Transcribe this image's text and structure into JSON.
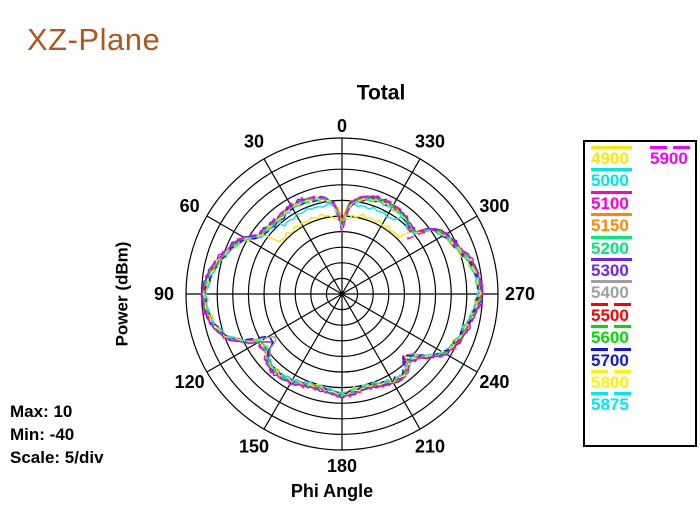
{
  "page": {
    "title": "XZ-Plane"
  },
  "stats": {
    "max": "Max: 10",
    "min": "Min: -40",
    "scale": "Scale: 5/div"
  },
  "chart_data": {
    "type": "polar-line",
    "title": "Total",
    "angular_axis": {
      "label": "Phi Angle",
      "tick_labels": [
        "0",
        "30",
        "60",
        "90",
        "120",
        "150",
        "180",
        "210",
        "240",
        "270",
        "300",
        "330"
      ],
      "tick_step_deg": 30,
      "direction": "counterclockwise",
      "zero_at": "top"
    },
    "radial_axis": {
      "label": "Power  (dBm)",
      "min": -40,
      "max": 10,
      "step": 5,
      "rings": 10
    },
    "grid_color": "#000000",
    "theta_start_deg": 0,
    "theta_step_deg": 5,
    "derivation_note": "series value(theta) = base_pattern_dbm (+ offset_db), replaced by overrides level_db inside their angle range, plus triangular deviations (delta_db at center, fading over width_deg), +-0.5 dB measurement ripple",
    "base_pattern_dbm": [
      -19,
      -11.5,
      -9.3,
      -8.6,
      -8.1,
      -7.9,
      -8,
      -8.3,
      -8.6,
      -8.5,
      -8.2,
      -8,
      -4.5,
      -2.2,
      -0.8,
      1,
      2.4,
      3.4,
      4.2,
      3.8,
      3.2,
      1.8,
      -0.3,
      -4.5,
      -9.3,
      -10.2,
      -8.6,
      -7.6,
      -7.3,
      -7.6,
      -8,
      -8.5,
      -9,
      -9.3,
      -9,
      -8.4,
      -7.7,
      -8.4,
      -9.1,
      -9.3,
      -8.9,
      -8.3,
      -7.6,
      -7.3,
      -7.9,
      -9.8,
      -8.6,
      -5.2,
      -2.2,
      -0.8,
      0.3,
      1.2,
      2.2,
      3.2,
      4.2,
      3.9,
      3.1,
      2,
      0.3,
      -0.8,
      -2,
      -4,
      -9.5,
      -9.8,
      -8.6,
      -8,
      -7.7,
      -7.6,
      -7.9,
      -8.5,
      -9.3,
      -11.5,
      -19
    ],
    "series": [
      {
        "name": "4900",
        "color": "#FFE600",
        "line": "solid",
        "legend": {
          "col": 0,
          "row": 0
        },
        "offset_db": -0.6,
        "overrides": [
          {
            "from": 314,
            "to": 52,
            "level_db": -14.2
          }
        ],
        "deviations": [
          {
            "center_deg": 0,
            "width_deg": 12,
            "delta_db": -2.5
          }
        ]
      },
      {
        "name": "5000",
        "color": "#00E6E6",
        "line": "solid",
        "legend": {
          "col": 0,
          "row": 1
        },
        "offset_db": -0.3,
        "overrides": [
          {
            "from": 324,
            "to": 352,
            "level_db": -11
          },
          {
            "from": 8,
            "to": 40,
            "level_db": -11
          }
        ]
      },
      {
        "name": "5100",
        "color": "#FF00CC",
        "line": "solid",
        "legend": {
          "col": 0,
          "row": 2
        },
        "offset_db": 0.5
      },
      {
        "name": "5150",
        "color": "#FF8800",
        "line": "solid",
        "legend": {
          "col": 0,
          "row": 3
        },
        "offset_db": 0.1,
        "deviations": [
          {
            "center_deg": 0,
            "width_deg": 8,
            "delta_db": 3
          }
        ]
      },
      {
        "name": "5200",
        "color": "#00E878",
        "line": "solid",
        "legend": {
          "col": 0,
          "row": 4
        },
        "offset_db": 0.3
      },
      {
        "name": "5300",
        "color": "#7722E5",
        "line": "solid",
        "legend": {
          "col": 0,
          "row": 5
        },
        "offset_db": 0.7,
        "deviations": [
          {
            "center_deg": 125,
            "width_deg": 7,
            "delta_db": -3.5
          },
          {
            "center_deg": 222,
            "width_deg": 5,
            "delta_db": -2.5
          }
        ]
      },
      {
        "name": "5400",
        "color": "#A0A0A0",
        "line": "solid",
        "legend": {
          "col": 0,
          "row": 6
        },
        "offset_db": -0.2,
        "deviations": [
          {
            "center_deg": 123,
            "width_deg": 8,
            "delta_db": -4.5
          },
          {
            "center_deg": 228,
            "width_deg": 5,
            "delta_db": -2.5
          }
        ]
      },
      {
        "name": "5500",
        "color": "#FF0000",
        "line": "dashed",
        "legend": {
          "col": 0,
          "row": 7
        },
        "offset_db": 0,
        "deviations": [
          {
            "center_deg": 226,
            "width_deg": 5,
            "delta_db": -3
          }
        ]
      },
      {
        "name": "5600",
        "color": "#00DD00",
        "line": "dashed",
        "legend": {
          "col": 0,
          "row": 8
        },
        "offset_db": 0.2
      },
      {
        "name": "5700",
        "color": "#1414E0",
        "line": "dashed",
        "legend": {
          "col": 0,
          "row": 9
        },
        "offset_db": -0.4,
        "deviations": [
          {
            "center_deg": 121,
            "width_deg": 7,
            "delta_db": -4
          },
          {
            "center_deg": 224,
            "width_deg": 5,
            "delta_db": -3
          }
        ]
      },
      {
        "name": "5800",
        "color": "#FFF200",
        "line": "dashed",
        "legend": {
          "col": 0,
          "row": 10
        },
        "offset_db": -0.1
      },
      {
        "name": "5875",
        "color": "#00E5FF",
        "line": "dashed",
        "legend": {
          "col": 0,
          "row": 11
        },
        "offset_db": -0.5
      },
      {
        "name": "5900",
        "color": "#F000FF",
        "line": "dashed",
        "legend": {
          "col": 1,
          "row": 0
        },
        "offset_db": 0.8,
        "deviations": [
          {
            "center_deg": 310,
            "width_deg": 6,
            "delta_db": -3.5
          },
          {
            "center_deg": 0,
            "width_deg": 8,
            "delta_db": -2
          }
        ]
      }
    ]
  }
}
